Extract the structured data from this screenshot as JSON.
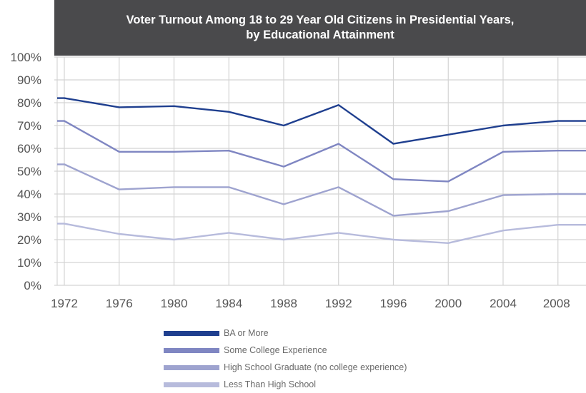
{
  "chart_data": {
    "type": "line",
    "title": "Voter Turnout Among 18 to 29 Year Old Citizens in Presidential Years,",
    "subtitle": "by Educational Attainment",
    "xlabel": "",
    "ylabel": "",
    "ylim": [
      0,
      100
    ],
    "y_ticks": [
      "0%",
      "10%",
      "20%",
      "30%",
      "40%",
      "50%",
      "60%",
      "70%",
      "80%",
      "90%",
      "100%"
    ],
    "x": [
      1972,
      1976,
      1980,
      1984,
      1988,
      1992,
      1996,
      2000,
      2004,
      2008
    ],
    "x_tick_labels": [
      "1972",
      "1976",
      "1980",
      "1984",
      "1988",
      "1992",
      "1996",
      "2000",
      "2004",
      "2008"
    ],
    "grid": true,
    "legend_position": "bottom",
    "series": [
      {
        "name": "BA or More",
        "color": "#1f3f8f",
        "values": [
          82,
          78,
          78.5,
          76,
          70,
          79,
          62,
          66,
          70,
          72
        ]
      },
      {
        "name": "Some College Experience",
        "color": "#7f86c2",
        "values": [
          72,
          58.5,
          58.5,
          59,
          52,
          62,
          46.5,
          45.5,
          58.5,
          59
        ]
      },
      {
        "name": "High School Graduate (no college experience)",
        "color": "#9ea3cf",
        "values": [
          53,
          42,
          43,
          43,
          35.5,
          43,
          30.5,
          32.5,
          39.5,
          40
        ]
      },
      {
        "name": "Less Than High School",
        "color": "#b7bbdc",
        "values": [
          27,
          22.5,
          20,
          23,
          20,
          23,
          20,
          18.5,
          24,
          26.5
        ]
      }
    ]
  }
}
